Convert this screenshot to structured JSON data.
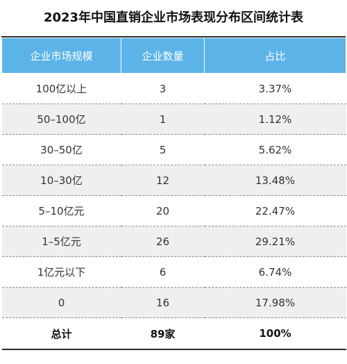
{
  "title": "2023年中国直销企业市场表现分布区间统计表",
  "chart_data": {
    "type": "table",
    "title": "2023年中国直销企业市场表现分布区间统计表",
    "columns": [
      "企业市场规模",
      "企业数量",
      "占比"
    ],
    "rows": [
      [
        "100亿以上",
        "3",
        "3.37%"
      ],
      [
        "50–100亿",
        "1",
        "1.12%"
      ],
      [
        "30–50亿",
        "5",
        "5.62%"
      ],
      [
        "10–30亿",
        "12",
        "13.48%"
      ],
      [
        "5–10亿元",
        "20",
        "22.47%"
      ],
      [
        "1–5亿元",
        "26",
        "29.21%"
      ],
      [
        "1亿元以下",
        "6",
        "6.74%"
      ],
      [
        "0",
        "16",
        "17.98%"
      ]
    ],
    "total": [
      "总计",
      "89家",
      "100%"
    ]
  },
  "colors": {
    "header_bg": "#5bb3e8",
    "stripe_bg": "#efefef",
    "rule": "#2b2b2b"
  }
}
